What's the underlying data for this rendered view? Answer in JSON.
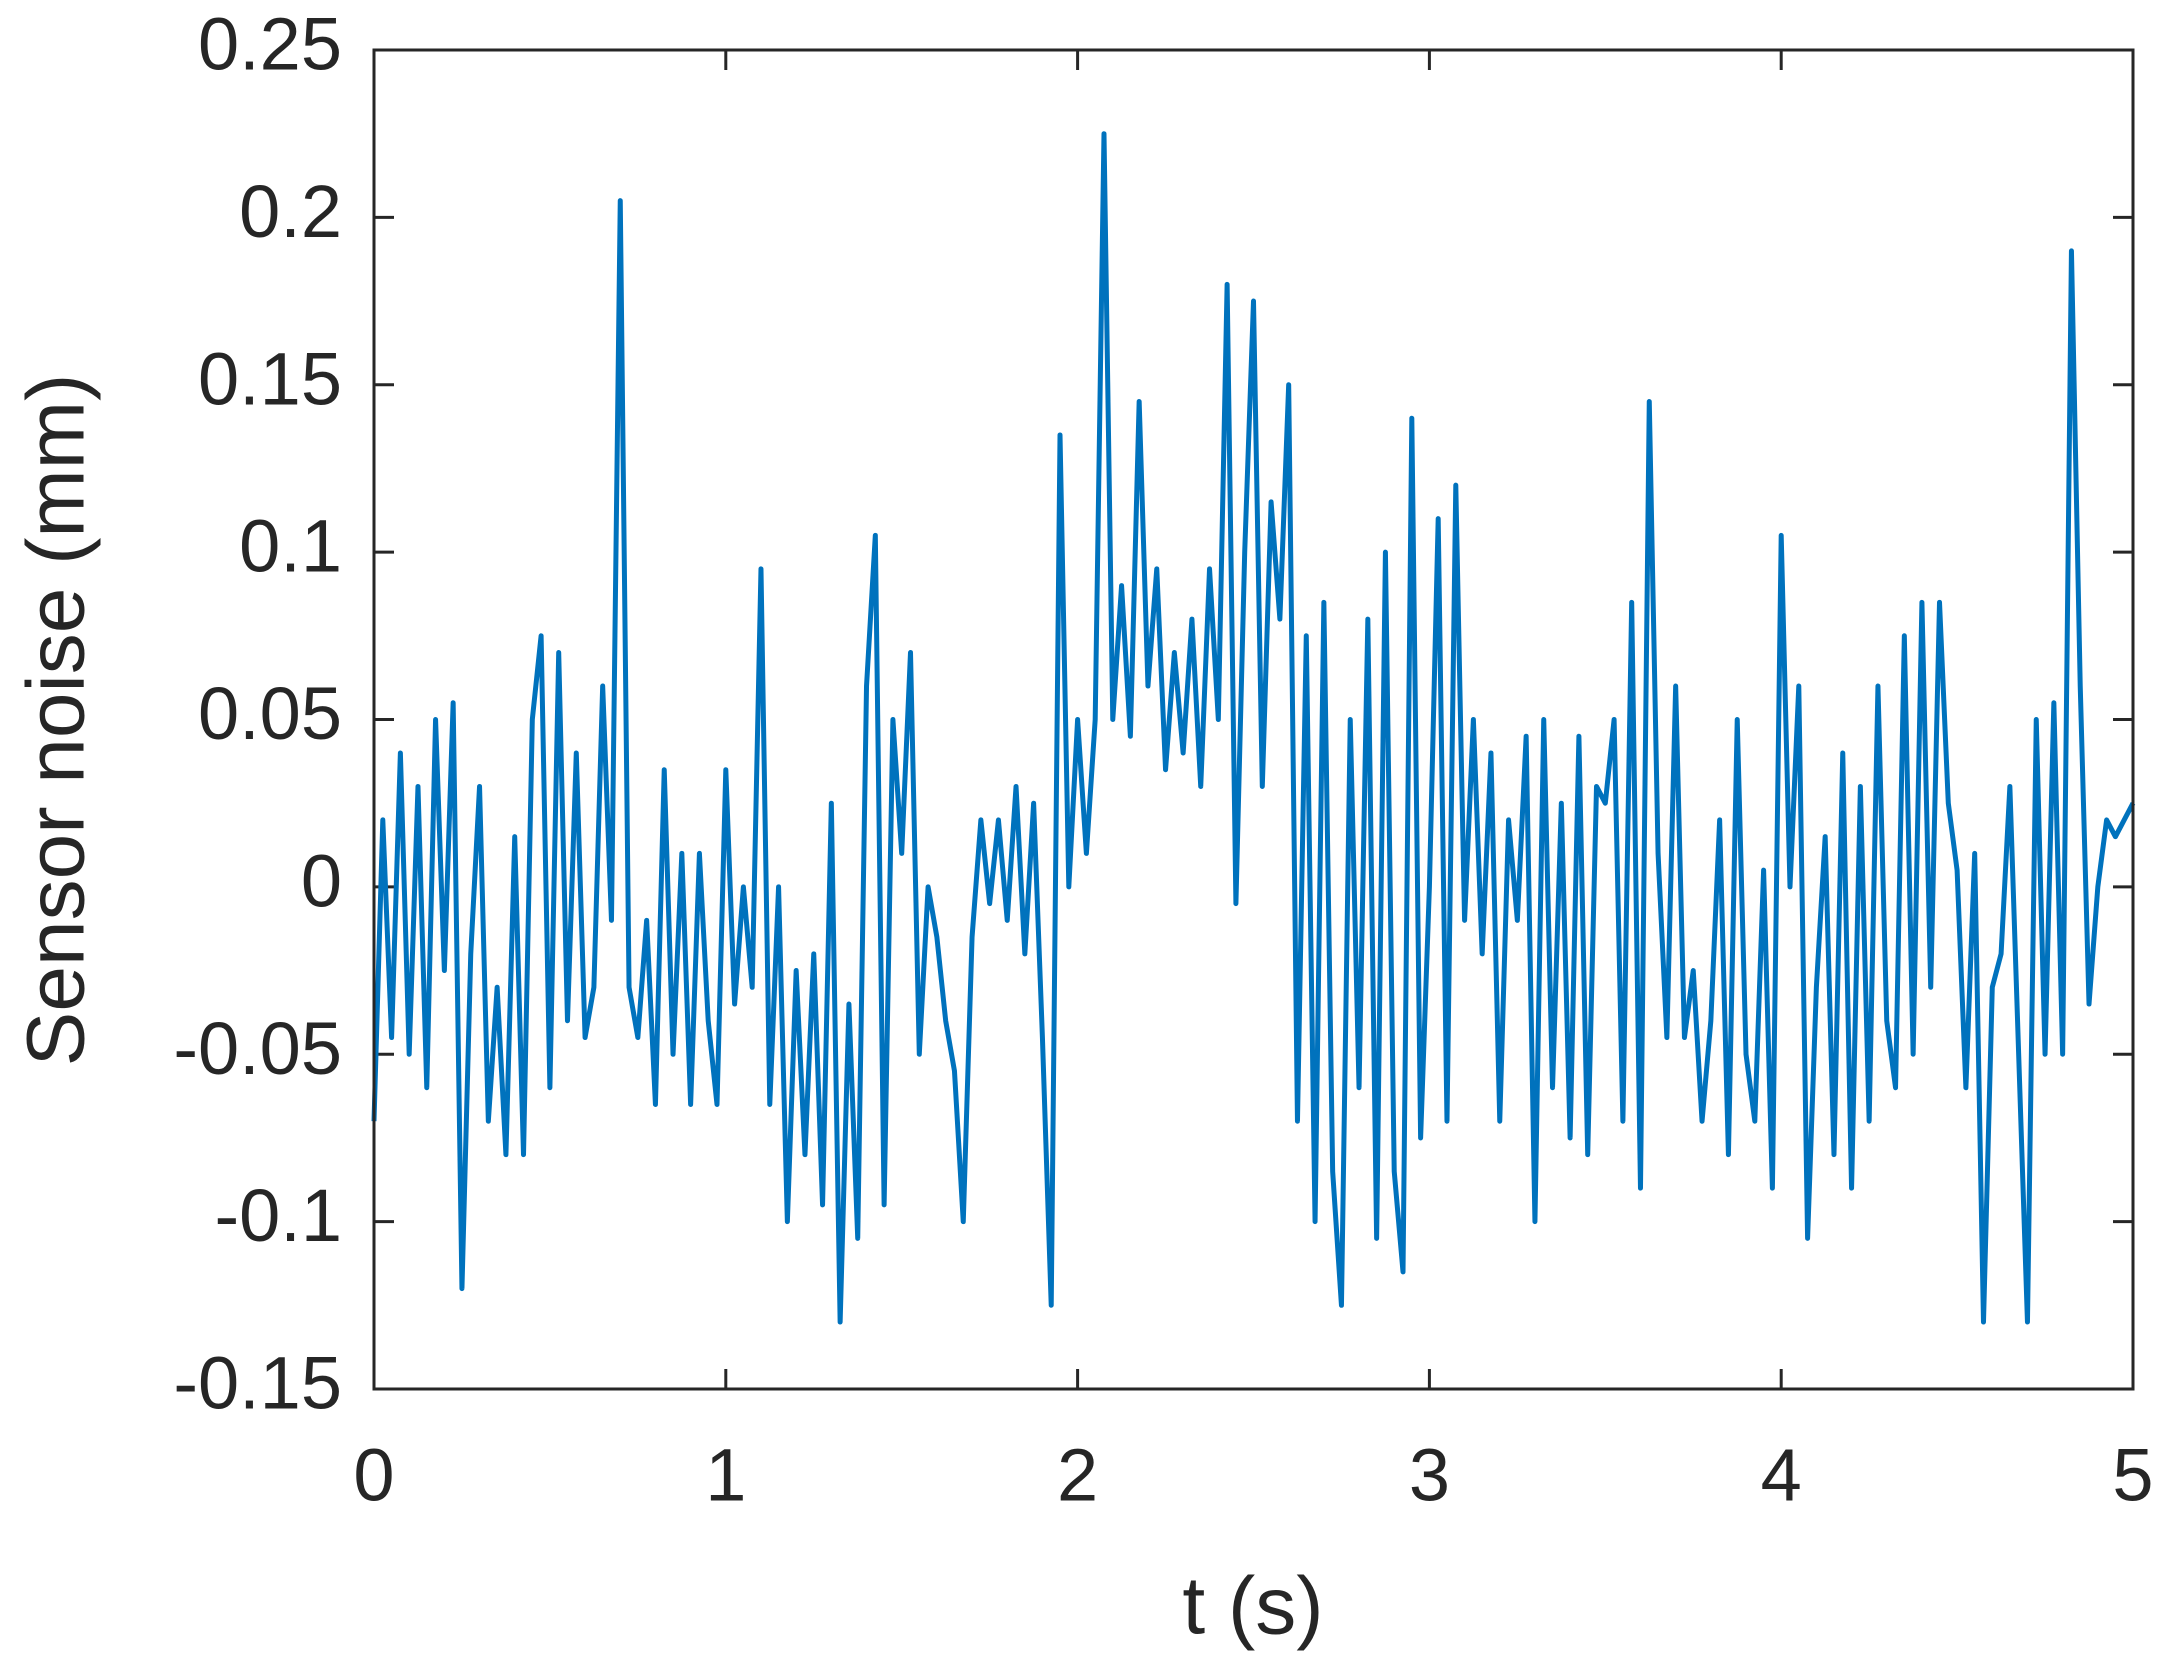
{
  "chart_data": {
    "type": "line",
    "xlabel": "t (s)",
    "ylabel": "Sensor noise (mm)",
    "xlim": [
      0,
      5
    ],
    "xticks": [
      0,
      1,
      2,
      3,
      4,
      5
    ],
    "ylim": [
      -0.15,
      0.25
    ],
    "yticks": [
      -0.15,
      -0.1,
      -0.05,
      0,
      0.05,
      0.1,
      0.15,
      0.2,
      0.25
    ],
    "grid": false,
    "series": [
      {
        "color": "#0072bd",
        "x": [
          0,
          0.025,
          0.05,
          0.075,
          0.1,
          0.125,
          0.15,
          0.175,
          0.2,
          0.225,
          0.25,
          0.275,
          0.3,
          0.325,
          0.35,
          0.375,
          0.4,
          0.425,
          0.45,
          0.475,
          0.5,
          0.525,
          0.55,
          0.575,
          0.6,
          0.625,
          0.65,
          0.675,
          0.7,
          0.725,
          0.75,
          0.775,
          0.8,
          0.825,
          0.85,
          0.875,
          0.9,
          0.925,
          0.95,
          0.975,
          1,
          1.025,
          1.05,
          1.075,
          1.1,
          1.125,
          1.15,
          1.175,
          1.2,
          1.225,
          1.25,
          1.275,
          1.3,
          1.325,
          1.35,
          1.375,
          1.4,
          1.425,
          1.45,
          1.475,
          1.5,
          1.525,
          1.55,
          1.575,
          1.6,
          1.625,
          1.65,
          1.675,
          1.7,
          1.725,
          1.75,
          1.775,
          1.8,
          1.825,
          1.85,
          1.875,
          1.9,
          1.925,
          1.95,
          1.975,
          2,
          2.025,
          2.05,
          2.075,
          2.1,
          2.125,
          2.15,
          2.175,
          2.2,
          2.225,
          2.25,
          2.275,
          2.3,
          2.325,
          2.35,
          2.375,
          2.4,
          2.425,
          2.45,
          2.475,
          2.5,
          2.525,
          2.55,
          2.575,
          2.6,
          2.625,
          2.65,
          2.675,
          2.7,
          2.725,
          2.75,
          2.775,
          2.8,
          2.825,
          2.85,
          2.875,
          2.9,
          2.925,
          2.95,
          2.975,
          3,
          3.025,
          3.05,
          3.075,
          3.1,
          3.125,
          3.15,
          3.175,
          3.2,
          3.225,
          3.25,
          3.275,
          3.3,
          3.325,
          3.35,
          3.375,
          3.4,
          3.425,
          3.45,
          3.475,
          3.5,
          3.525,
          3.55,
          3.575,
          3.6,
          3.625,
          3.65,
          3.675,
          3.7,
          3.725,
          3.75,
          3.775,
          3.8,
          3.825,
          3.85,
          3.875,
          3.9,
          3.925,
          3.95,
          3.975,
          4,
          4.025,
          4.05,
          4.075,
          4.1,
          4.125,
          4.15,
          4.175,
          4.2,
          4.225,
          4.25,
          4.275,
          4.3,
          4.325,
          4.35,
          4.375,
          4.4,
          4.425,
          4.45,
          4.475,
          4.5,
          4.525,
          4.55,
          4.575,
          4.6,
          4.625,
          4.65,
          4.675,
          4.7,
          4.725,
          4.75,
          4.775,
          4.8,
          4.825,
          4.85,
          4.875,
          4.9,
          4.925,
          4.95,
          4.975,
          5
        ],
        "values": [
          -0.07,
          0.02,
          -0.045,
          0.04,
          -0.05,
          0.03,
          -0.06,
          0.05,
          -0.025,
          0.055,
          -0.12,
          -0.02,
          0.03,
          -0.07,
          -0.03,
          -0.08,
          0.015,
          -0.08,
          0.05,
          0.075,
          -0.06,
          0.07,
          -0.04,
          0.04,
          -0.045,
          -0.03,
          0.06,
          -0.01,
          0.205,
          -0.03,
          -0.045,
          -0.01,
          -0.065,
          0.035,
          -0.05,
          0.01,
          -0.065,
          0.01,
          -0.04,
          -0.065,
          0.035,
          -0.035,
          0.0,
          -0.03,
          0.095,
          -0.065,
          0.0,
          -0.1,
          -0.025,
          -0.08,
          -0.02,
          -0.095,
          0.025,
          -0.13,
          -0.035,
          -0.105,
          0.06,
          0.105,
          -0.095,
          0.05,
          0.01,
          0.07,
          -0.05,
          0.0,
          -0.015,
          -0.04,
          -0.055,
          -0.1,
          -0.015,
          0.02,
          -0.005,
          0.02,
          -0.01,
          0.03,
          -0.02,
          0.025,
          -0.045,
          -0.125,
          0.135,
          0.0,
          0.05,
          0.01,
          0.05,
          0.225,
          0.05,
          0.09,
          0.045,
          0.145,
          0.06,
          0.095,
          0.035,
          0.07,
          0.04,
          0.08,
          0.03,
          0.095,
          0.05,
          0.18,
          -0.005,
          0.1,
          0.175,
          0.03,
          0.115,
          0.08,
          0.15,
          -0.07,
          0.075,
          -0.1,
          0.085,
          -0.085,
          -0.125,
          0.05,
          -0.06,
          0.08,
          -0.105,
          0.1,
          -0.085,
          -0.115,
          0.14,
          -0.075,
          0.0,
          0.11,
          -0.07,
          0.12,
          -0.01,
          0.05,
          -0.02,
          0.04,
          -0.07,
          0.02,
          -0.01,
          0.045,
          -0.1,
          0.05,
          -0.06,
          0.025,
          -0.075,
          0.045,
          -0.08,
          0.03,
          0.025,
          0.05,
          -0.07,
          0.085,
          -0.09,
          0.145,
          0.01,
          -0.045,
          0.06,
          -0.045,
          -0.025,
          -0.07,
          -0.04,
          0.02,
          -0.08,
          0.05,
          -0.05,
          -0.07,
          0.005,
          -0.09,
          0.105,
          0.0,
          0.06,
          -0.105,
          -0.03,
          0.015,
          -0.08,
          0.04,
          -0.09,
          0.03,
          -0.07,
          0.06,
          -0.04,
          -0.06,
          0.075,
          -0.05,
          0.085,
          -0.03,
          0.085,
          0.025,
          0.005,
          -0.06,
          0.01,
          -0.13,
          -0.03,
          -0.02,
          0.03,
          -0.05,
          -0.13,
          0.05,
          -0.05,
          0.055,
          -0.05,
          0.19,
          0.06,
          -0.035,
          0.0,
          0.02,
          0.015,
          0.02,
          0.025
        ]
      }
    ]
  }
}
